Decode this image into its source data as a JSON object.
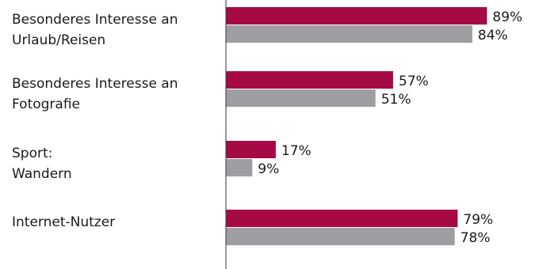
{
  "chart_data": {
    "type": "bar",
    "orientation": "horizontal",
    "categories": [
      [
        "Besonderes Interesse an",
        "Urlaub/Reisen"
      ],
      [
        "Besonderes Interesse an",
        "Fotografie"
      ],
      [
        "Sport:",
        "Wandern"
      ],
      [
        "Internet-Nutzer"
      ]
    ],
    "series": [
      {
        "color": "#a50a45",
        "values": [
          89,
          57,
          17,
          79
        ]
      },
      {
        "color": "#9e9ea2",
        "values": [
          84,
          51,
          9,
          78
        ]
      }
    ],
    "value_suffix": "%",
    "xlim": [
      0,
      100
    ],
    "grid": false,
    "legend": "none"
  }
}
